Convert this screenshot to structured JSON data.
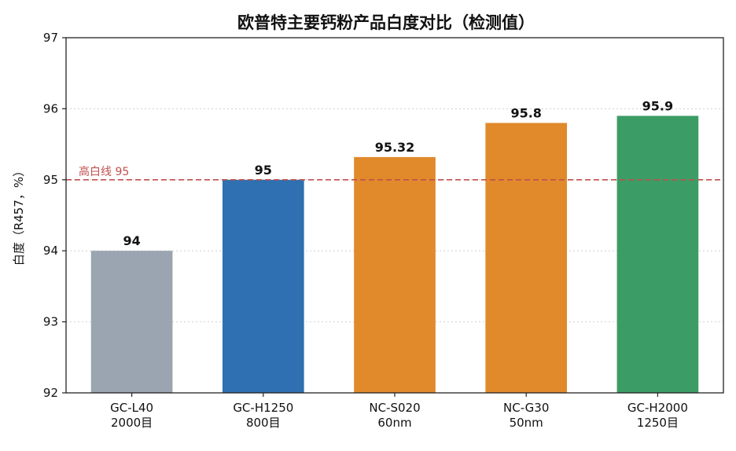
{
  "chart_data": {
    "type": "bar",
    "title": "欧普特主要钙粉产品白度对比（检测值）",
    "xlabel": "",
    "ylabel": "白度（R457，%）",
    "ylim": [
      92,
      97
    ],
    "yticks": [
      "92",
      "93",
      "94",
      "95",
      "96",
      "97"
    ],
    "grid": true,
    "categories": [
      [
        "GC-L40",
        "2000目"
      ],
      [
        "GC-H1250",
        "800目"
      ],
      [
        "NC-S020",
        "60nm"
      ],
      [
        "NC-G30",
        "50nm"
      ],
      [
        "GC-H2000",
        "1250目"
      ]
    ],
    "values": [
      94,
      95,
      95.32,
      95.8,
      95.9
    ],
    "value_labels": [
      "94",
      "95",
      "95.32",
      "95.8",
      "95.9"
    ],
    "bar_colors": [
      "#9aa5b1",
      "#2e70b1",
      "#e08a2c",
      "#e08a2c",
      "#3c9c66"
    ],
    "reference_line": {
      "value": 95,
      "label": "高白线 95",
      "color": "#c0504d"
    }
  }
}
